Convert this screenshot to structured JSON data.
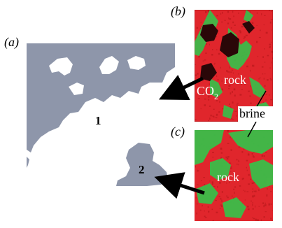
{
  "panels": {
    "a": {
      "label": "(a)",
      "region1": "1",
      "region2": "2"
    },
    "b": {
      "label": "(b)",
      "co2_label": "CO",
      "co2_subscript": "2",
      "rock_label": "rock"
    },
    "c": {
      "label": "(c)",
      "rock_label": "rock"
    }
  },
  "callout": {
    "brine_label": "brine"
  },
  "colors": {
    "pore_fill": "#8e96aa",
    "rock_red": "#e0262c",
    "brine_green": "#36c24a",
    "co2_dark": "#2a0708",
    "arrow": "#000000"
  }
}
